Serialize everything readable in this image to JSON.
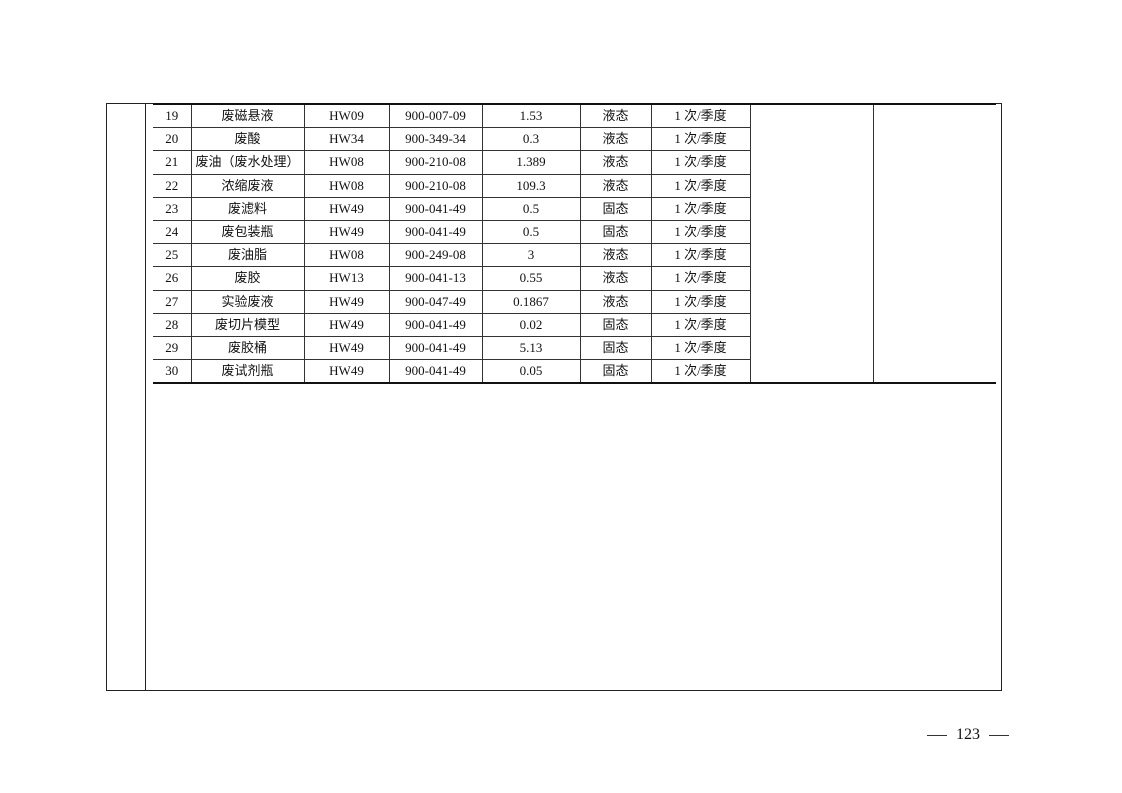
{
  "table": {
    "rows": [
      [
        "19",
        "废磁悬液",
        "HW09",
        "900-007-09",
        "1.53",
        "液态",
        "1 次/季度"
      ],
      [
        "20",
        "废酸",
        "HW34",
        "900-349-34",
        "0.3",
        "液态",
        "1 次/季度"
      ],
      [
        "21",
        "废油（废水处理）",
        "HW08",
        "900-210-08",
        "1.389",
        "液态",
        "1 次/季度"
      ],
      [
        "22",
        "浓缩废液",
        "HW08",
        "900-210-08",
        "109.3",
        "液态",
        "1 次/季度"
      ],
      [
        "23",
        "废滤料",
        "HW49",
        "900-041-49",
        "0.5",
        "固态",
        "1 次/季度"
      ],
      [
        "24",
        "废包装瓶",
        "HW49",
        "900-041-49",
        "0.5",
        "固态",
        "1 次/季度"
      ],
      [
        "25",
        "废油脂",
        "HW08",
        "900-249-08",
        "3",
        "液态",
        "1 次/季度"
      ],
      [
        "26",
        "废胶",
        "HW13",
        "900-041-13",
        "0.55",
        "液态",
        "1 次/季度"
      ],
      [
        "27",
        "实验废液",
        "HW49",
        "900-047-49",
        "0.1867",
        "液态",
        "1 次/季度"
      ],
      [
        "28",
        "废切片模型",
        "HW49",
        "900-041-49",
        "0.02",
        "固态",
        "1 次/季度"
      ],
      [
        "29",
        "废胶桶",
        "HW49",
        "900-041-49",
        "5.13",
        "固态",
        "1 次/季度"
      ],
      [
        "30",
        "废试剂瓶",
        "HW49",
        "900-041-49",
        "0.05",
        "固态",
        "1 次/季度"
      ]
    ]
  },
  "footer": {
    "page_number": "123"
  }
}
